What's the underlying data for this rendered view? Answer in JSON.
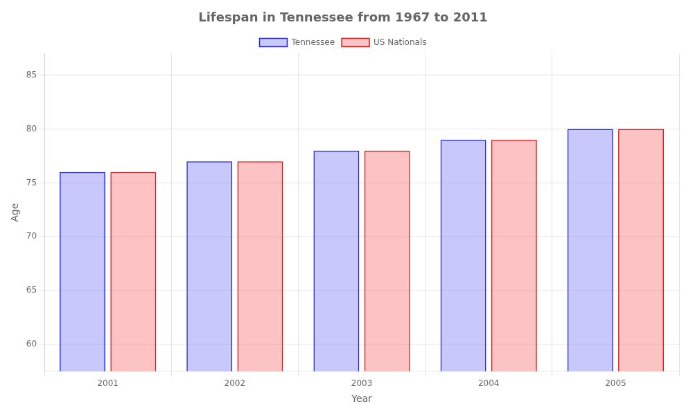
{
  "chart_data": {
    "type": "bar",
    "title": "Lifespan in Tennessee from 1967 to 2011",
    "x_label": "Year",
    "y_label": "Age",
    "categories": [
      "2001",
      "2002",
      "2003",
      "2004",
      "2005"
    ],
    "series": [
      {
        "name": "Tennessee",
        "color": "#2222ee",
        "values": [
          76,
          77,
          78,
          79,
          80
        ]
      },
      {
        "name": "US Nationals",
        "color": "#ee1111",
        "values": [
          76,
          77,
          78,
          79,
          80
        ]
      }
    ],
    "ylim": [
      57.5,
      87
    ],
    "yticks": [
      60,
      65,
      70,
      75,
      80,
      85
    ],
    "grid": true,
    "legend": "top"
  }
}
